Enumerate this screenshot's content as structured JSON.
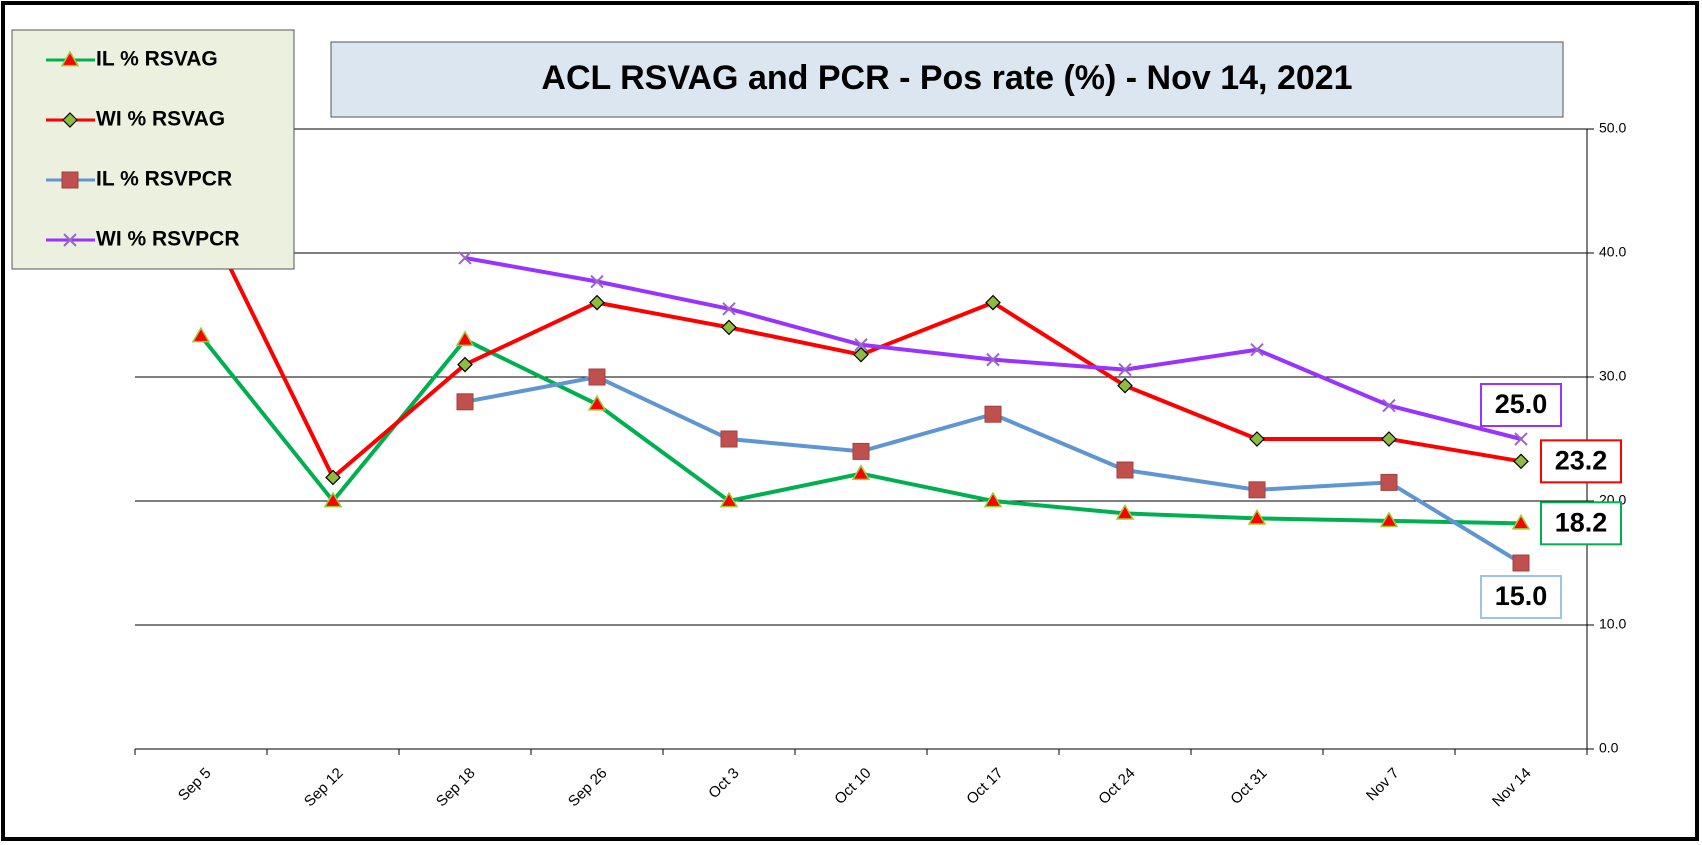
{
  "chart_data": {
    "type": "line",
    "title": "ACL RSVAG and PCR - Pos rate (%) - Nov 14, 2021",
    "categories": [
      "Sep 5",
      "Sep 12",
      "Sep 18",
      "Sep 26",
      "Oct 3",
      "Oct 10",
      "Oct 17",
      "Oct 24",
      "Oct 31",
      "Nov 7",
      "Nov 14"
    ],
    "series": [
      {
        "name": "IL % RSVAG",
        "color": "#00b050",
        "values": [
          33.3,
          20,
          33,
          27.8,
          20,
          22.2,
          20,
          19,
          18.6,
          18.4,
          18.2
        ],
        "value_labels": [
          null,
          null,
          null,
          null,
          null,
          null,
          null,
          null,
          null,
          null,
          "18.2"
        ]
      },
      {
        "name": "WI % RSVAG",
        "color": "#ff0000",
        "values": [
          43.6,
          21.9,
          31,
          36,
          34,
          31.8,
          36,
          29.3,
          25,
          25,
          23.2
        ],
        "value_labels": [
          null,
          null,
          null,
          null,
          null,
          null,
          null,
          null,
          null,
          null,
          "23.2"
        ]
      },
      {
        "name": "IL % RSVPCR",
        "color": "#5f96d2",
        "values": [
          null,
          null,
          28,
          30,
          25,
          24,
          27,
          22.5,
          20.9,
          21.5,
          15
        ],
        "value_labels": [
          null,
          null,
          null,
          null,
          null,
          null,
          null,
          null,
          null,
          null,
          "15.0"
        ]
      },
      {
        "name": "WI % RSVPCR",
        "color": "#9933ff",
        "values": [
          null,
          null,
          39.6,
          37.7,
          35.5,
          32.6,
          31.4,
          30.6,
          32.2,
          27.7,
          25
        ],
        "value_labels": [
          null,
          null,
          null,
          null,
          null,
          null,
          null,
          null,
          null,
          null,
          "25.0"
        ]
      }
    ],
    "ylim": [
      0,
      50
    ],
    "yticks": [
      {
        "value": 0,
        "label": "0.0"
      },
      {
        "value": 10,
        "label": "10.0"
      },
      {
        "value": 20,
        "label": "20.0"
      },
      {
        "value": 30,
        "label": "30.0"
      },
      {
        "value": 40,
        "label": "40.0"
      },
      {
        "value": 50,
        "label": "50.0"
      }
    ],
    "grid": true,
    "legend": "top-left"
  }
}
